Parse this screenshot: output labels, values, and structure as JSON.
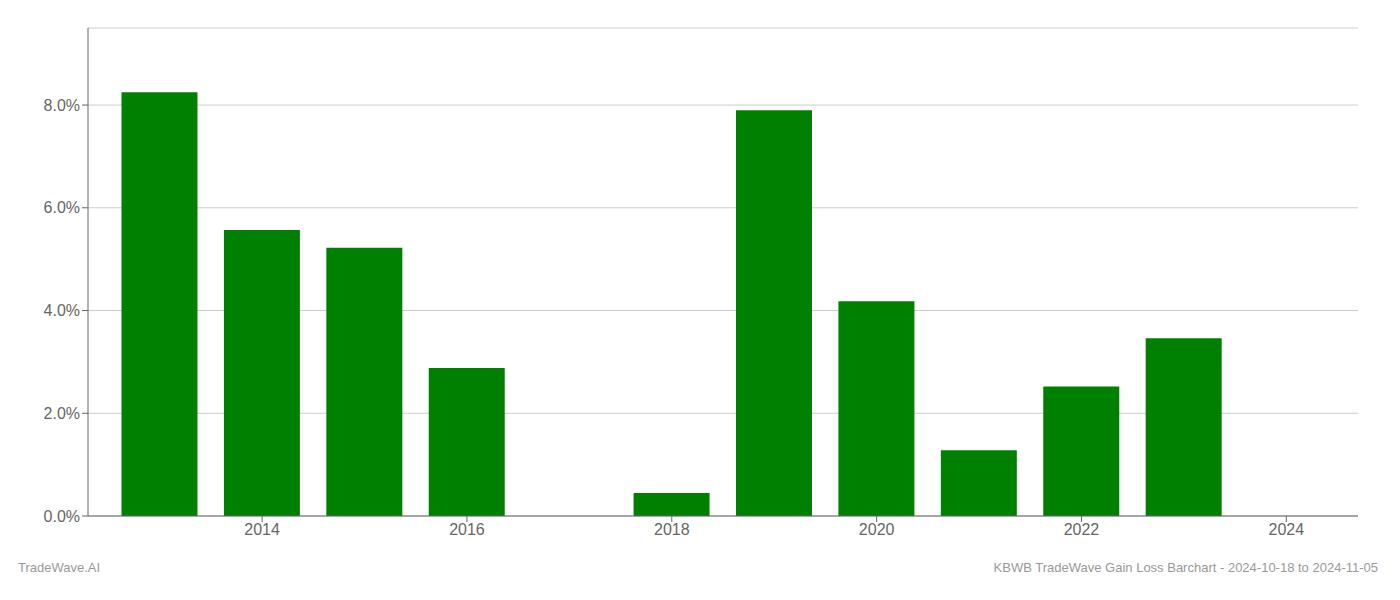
{
  "chart_data": {
    "type": "bar",
    "x": [
      2013,
      2014,
      2015,
      2016,
      2018,
      2019,
      2020,
      2021,
      2022,
      2023
    ],
    "values": [
      0.0825,
      0.0557,
      0.0522,
      0.0288,
      0.0045,
      0.079,
      0.0418,
      0.0128,
      0.0252,
      0.0346
    ],
    "color": "#008000",
    "xlim": [
      2012.3,
      2024.7
    ],
    "xticks": [
      2014,
      2016,
      2018,
      2020,
      2022,
      2024
    ],
    "ylim": [
      0,
      0.095
    ],
    "yticks": [
      {
        "value": 0.0,
        "label": "0.0%"
      },
      {
        "value": 0.02,
        "label": "2.0%"
      },
      {
        "value": 0.04,
        "label": "4.0%"
      },
      {
        "value": 0.06,
        "label": "6.0%"
      },
      {
        "value": 0.08,
        "label": "8.0%"
      }
    ],
    "grid": true,
    "annotations": [
      "TradeWave.AI",
      "KBWB TradeWave Gain Loss Barchart - 2024-10-18 to 2024-11-05"
    ]
  }
}
